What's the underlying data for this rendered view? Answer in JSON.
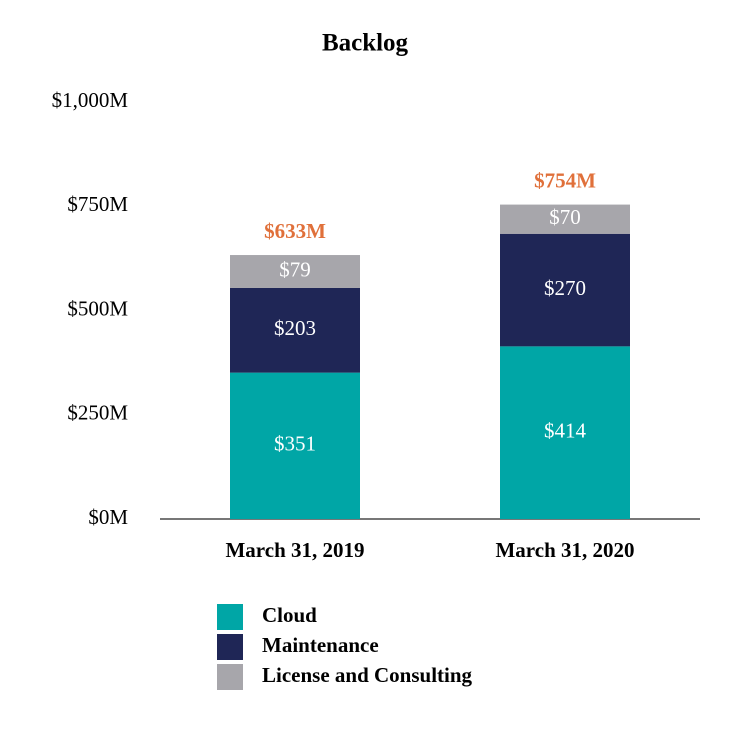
{
  "chart_data": {
    "type": "stacked_bar",
    "title": "Backlog",
    "categories": [
      "March 31, 2019",
      "March 31, 2020"
    ],
    "series": [
      {
        "name": "Cloud",
        "color": "#00a6a6",
        "values": [
          351,
          414
        ],
        "value_labels": [
          "$351",
          "$414"
        ]
      },
      {
        "name": "Maintenance",
        "color": "#1f2656",
        "values": [
          203,
          270
        ],
        "value_labels": [
          "$203",
          "$270"
        ]
      },
      {
        "name": "License and Consulting",
        "color": "#a7a6ab",
        "values": [
          79,
          70
        ],
        "value_labels": [
          "$79",
          "$70"
        ]
      }
    ],
    "totals": {
      "values": [
        633,
        754
      ],
      "value_labels": [
        "$633M",
        "$754M"
      ],
      "color": "#e0703a"
    },
    "ylim": [
      0,
      1000
    ],
    "yticks": [
      {
        "value": 0,
        "label": "$0M"
      },
      {
        "value": 250,
        "label": "$250M"
      },
      {
        "value": 500,
        "label": "$500M"
      },
      {
        "value": 750,
        "label": "$750M"
      },
      {
        "value": 1000,
        "label": "$1,000M"
      }
    ],
    "grid": false
  }
}
